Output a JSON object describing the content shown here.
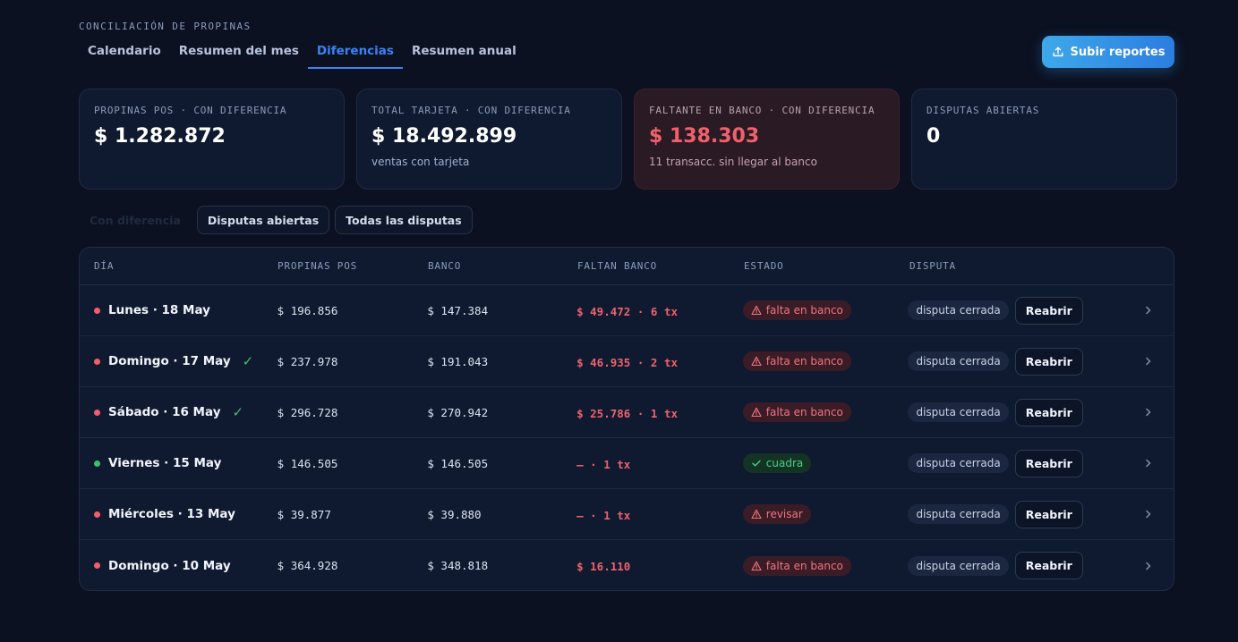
{
  "header": {
    "eyebrow": "CONCILIACIÓN DE PROPINAS",
    "tabs": [
      {
        "label": "Calendario"
      },
      {
        "label": "Resumen del mes"
      },
      {
        "label": "Diferencias"
      },
      {
        "label": "Resumen anual"
      }
    ],
    "active_tab": "Diferencias",
    "upload_label": "Subir reportes"
  },
  "cards": [
    {
      "label": "PROPINAS POS · CON DIFERENCIA",
      "value": "$ 1.282.872",
      "sub": ""
    },
    {
      "label": "TOTAL TARJETA · CON DIFERENCIA",
      "value": "$ 18.492.899",
      "sub": "ventas con tarjeta"
    },
    {
      "label": "FALTANTE EN BANCO · CON DIFERENCIA",
      "value": "$ 138.303",
      "sub": "11 transacc. sin llegar al banco"
    },
    {
      "label": "DISPUTAS ABIERTAS",
      "value": "0",
      "sub": ""
    }
  ],
  "filters": [
    {
      "label": "Con diferencia"
    },
    {
      "label": "Disputas abiertas"
    },
    {
      "label": "Todas las disputas"
    }
  ],
  "table": {
    "headers": {
      "dia": "DÍA",
      "pos": "PROPINAS POS",
      "banco": "BANCO",
      "faltan": "FALTAN BANCO",
      "estado": "ESTADO",
      "disputa": "DISPUTA"
    },
    "rows": [
      {
        "day": "Lunes · 18 May",
        "check": "",
        "pos": "$ 196.856",
        "banco": "$ 147.384",
        "faltan": "$ 49.472",
        "tx": "· 6 tx",
        "estado": "falta en banco",
        "disputa": "disputa cerrada",
        "action": "Reabrir"
      },
      {
        "day": "Domingo · 17 May",
        "check": "✓",
        "pos": "$ 237.978",
        "banco": "$ 191.043",
        "faltan": "$ 46.935",
        "tx": "· 2 tx",
        "estado": "falta en banco",
        "disputa": "disputa cerrada",
        "action": "Reabrir"
      },
      {
        "day": "Sábado · 16 May",
        "check": "✓",
        "pos": "$ 296.728",
        "banco": "$ 270.942",
        "faltan": "$ 25.786",
        "tx": "· 1 tx",
        "estado": "falta en banco",
        "disputa": "disputa cerrada",
        "action": "Reabrir"
      },
      {
        "day": "Viernes · 15 May",
        "check": "",
        "pos": "$ 146.505",
        "banco": "$ 146.505",
        "faltan": "—",
        "tx": "· 1 tx",
        "estado": "cuadra",
        "disputa": "disputa cerrada",
        "action": "Reabrir"
      },
      {
        "day": "Miércoles · 13 May",
        "check": "",
        "pos": "$ 39.877",
        "banco": "$ 39.880",
        "faltan": "—",
        "tx": "· 1 tx",
        "estado": "revisar",
        "disputa": "disputa cerrada",
        "action": "Reabrir"
      },
      {
        "day": "Domingo · 10 May",
        "check": "",
        "pos": "$ 364.928",
        "banco": "$ 348.818",
        "faltan": "$ 16.110",
        "tx": "",
        "estado": "falta en banco",
        "disputa": "disputa cerrada",
        "action": "Reabrir"
      }
    ]
  },
  "colors": {
    "background": "#0b1120",
    "accent": "#3b82f6",
    "danger": "#f0616d",
    "success": "#3fbf6c"
  }
}
